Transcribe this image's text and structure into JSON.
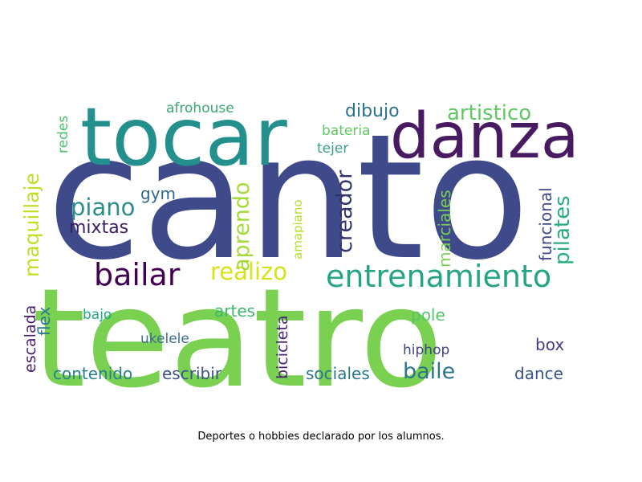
{
  "caption": "Deportes o hobbies declarado por los alumnos.",
  "words": [
    {
      "text": "canto",
      "color": "#3f4a8a"
    },
    {
      "text": "teatro",
      "color": "#7ad151"
    },
    {
      "text": "tocar",
      "color": "#23908d"
    },
    {
      "text": "danza",
      "color": "#471a61"
    },
    {
      "text": "entrenamiento",
      "color": "#25a585"
    },
    {
      "text": "bailar",
      "color": "#440154"
    },
    {
      "text": "artistico",
      "color": "#5ec962"
    },
    {
      "text": "realizo",
      "color": "#d8e219"
    },
    {
      "text": "piano",
      "color": "#2c8e8c"
    },
    {
      "text": "maquillaje",
      "color": "#c0df25"
    },
    {
      "text": "pilates",
      "color": "#28ae80"
    },
    {
      "text": "creador",
      "color": "#31356e"
    },
    {
      "text": "aprendo",
      "color": "#a2da37"
    },
    {
      "text": "baile",
      "color": "#2a768e"
    },
    {
      "text": "dibujo",
      "color": "#2c728e"
    },
    {
      "text": "mixtas",
      "color": "#3b1c5c"
    },
    {
      "text": "funcional",
      "color": "#3f4a8a"
    },
    {
      "text": "marciales",
      "color": "#7ad151"
    },
    {
      "text": "gym",
      "color": "#31688e"
    },
    {
      "text": "contenido",
      "color": "#26818e"
    },
    {
      "text": "escribir",
      "color": "#3b528b"
    },
    {
      "text": "sociales",
      "color": "#2b758e"
    },
    {
      "text": "artes",
      "color": "#3eb66e"
    },
    {
      "text": "escalada",
      "color": "#482173"
    },
    {
      "text": "flex",
      "color": "#29798e"
    },
    {
      "text": "bicicleta",
      "color": "#482475"
    },
    {
      "text": "pole",
      "color": "#52c569"
    },
    {
      "text": "box",
      "color": "#433d84"
    },
    {
      "text": "dance",
      "color": "#3a538b"
    },
    {
      "text": "redes",
      "color": "#4cc26c"
    },
    {
      "text": "afrohouse",
      "color": "#3aa872"
    },
    {
      "text": "bateria",
      "color": "#5ec962"
    },
    {
      "text": "tejer",
      "color": "#3aa08a"
    },
    {
      "text": "bajo",
      "color": "#22a884"
    },
    {
      "text": "ukelele",
      "color": "#3a6d8e"
    },
    {
      "text": "hiphop",
      "color": "#404387"
    },
    {
      "text": "amapiano",
      "color": "#b5de2b"
    }
  ]
}
